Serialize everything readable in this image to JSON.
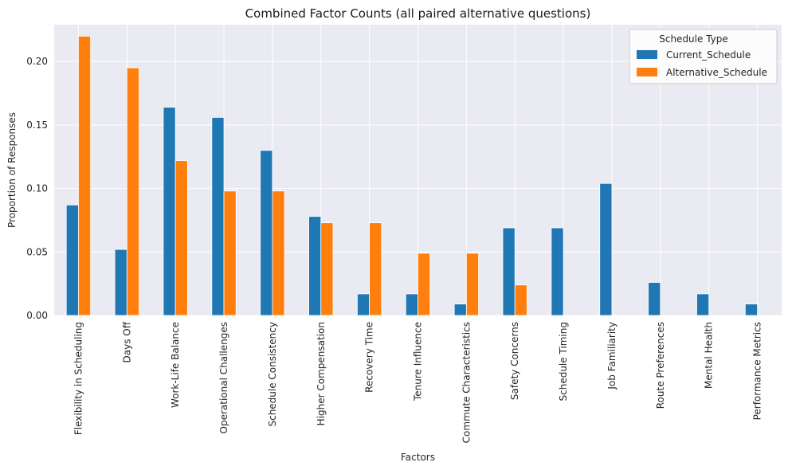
{
  "chart_data": {
    "type": "bar",
    "title": "Combined Factor Counts (all paired alternative questions)",
    "xlabel": "Factors",
    "ylabel": "Proportion of Responses",
    "ylim": [
      0,
      0.229
    ],
    "yticks": [
      0.0,
      0.05,
      0.1,
      0.15,
      0.2
    ],
    "ytick_labels": [
      "0.00",
      "0.05",
      "0.10",
      "0.15",
      "0.20"
    ],
    "grid": true,
    "legend": {
      "title": "Schedule Type",
      "placement": "top-right"
    },
    "categories": [
      "Flexibility in Scheduling",
      "Days Off",
      "Work-Life Balance",
      "Operational Challenges",
      "Schedule Consistency",
      "Higher Compensation",
      "Recovery Time",
      "Tenure Influence",
      "Commute Characteristics",
      "Safety Concerns",
      "Schedule Timing",
      "Job Familiarity",
      "Route Preferences",
      "Mental Health",
      "Performance Metrics"
    ],
    "series": [
      {
        "name": "Current_Schedule",
        "color": "#1f77b4",
        "values": [
          0.087,
          0.052,
          0.164,
          0.156,
          0.13,
          0.078,
          0.017,
          0.017,
          0.009,
          0.069,
          0.069,
          0.104,
          0.026,
          0.017,
          0.009
        ]
      },
      {
        "name": "Alternative_Schedule",
        "color": "#ff7f0e",
        "values": [
          0.22,
          0.195,
          0.122,
          0.098,
          0.098,
          0.073,
          0.073,
          0.049,
          0.049,
          0.024,
          0.0,
          0.0,
          0.0,
          0.0,
          0.0
        ]
      }
    ]
  },
  "colors": {
    "plot_background": "#eaeaf2",
    "grid": "#ffffff"
  }
}
